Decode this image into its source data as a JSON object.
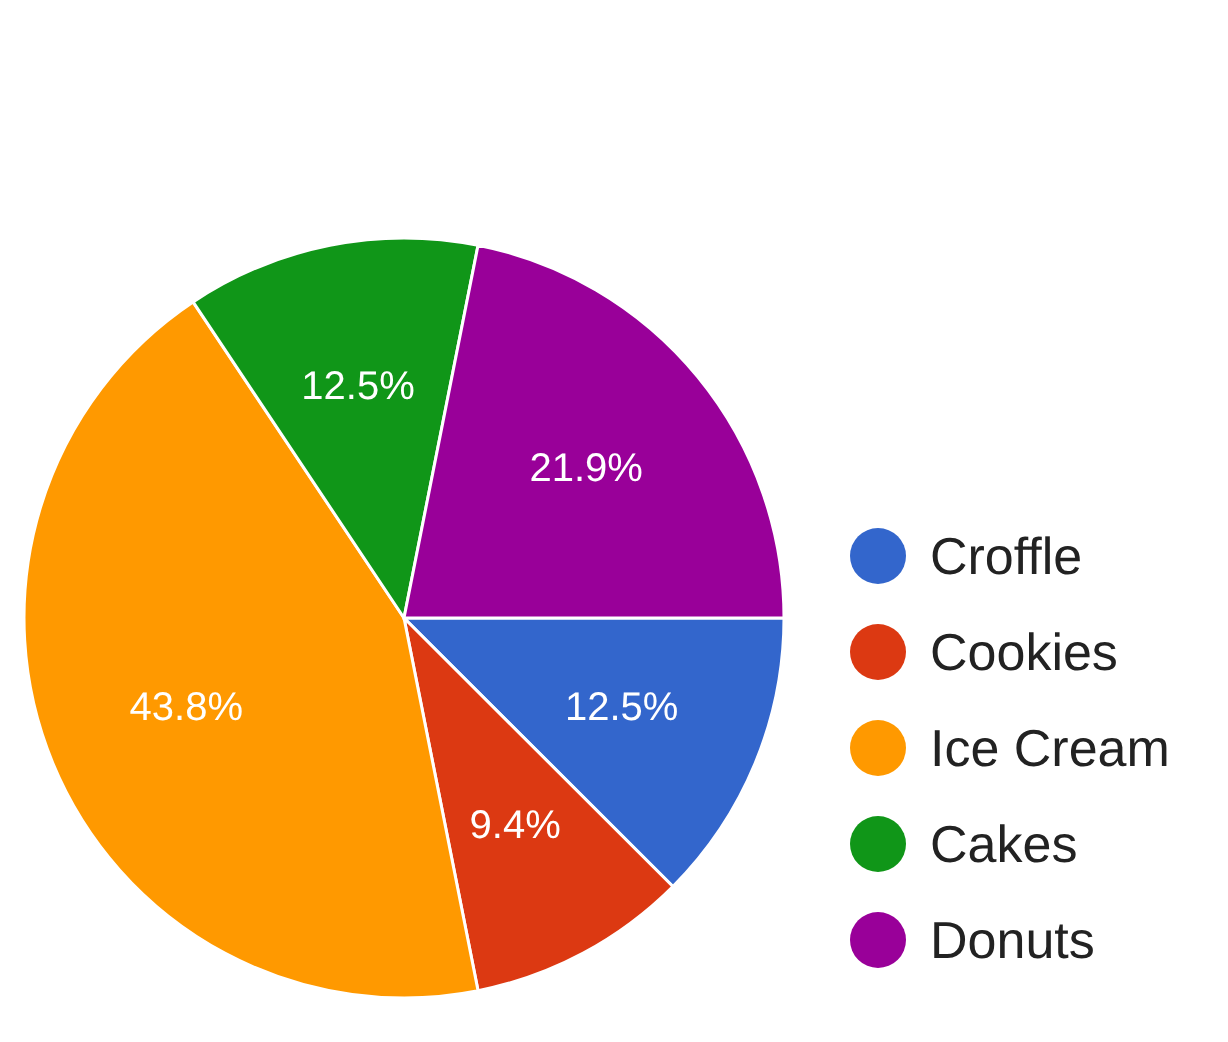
{
  "chart_data": {
    "type": "pie",
    "categories": [
      "Croffle",
      "Cookies",
      "Ice Cream",
      "Cakes",
      "Donuts"
    ],
    "values": [
      12.5,
      9.4,
      43.8,
      12.5,
      21.9
    ],
    "colors": [
      "#3366cc",
      "#dc3912",
      "#ff9900",
      "#109618",
      "#990099"
    ],
    "value_labels": [
      "12.5%",
      "9.4%",
      "43.8%",
      "12.5%",
      "21.9%"
    ],
    "legend": "right"
  }
}
